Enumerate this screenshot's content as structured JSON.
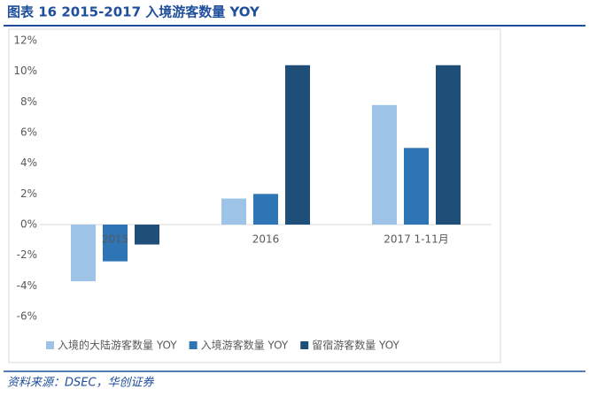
{
  "chart_data": {
    "type": "bar",
    "title": "图表 16    2015-2017 入境游客数量 YOY",
    "source": "资料来源：DSEC，华创证券",
    "categories": [
      "2015",
      "2016",
      "2017 1-11月"
    ],
    "series": [
      {
        "name": "入境的大陆游客数量 YOY",
        "color": "#9dc3e6",
        "values": [
          -3.7,
          1.7,
          7.8
        ]
      },
      {
        "name": "入境游客数量 YOY",
        "color": "#2e75b6",
        "values": [
          -2.4,
          2.0,
          5.0
        ]
      },
      {
        "name": "留宿游客数量 YOY",
        "color": "#1f4e79",
        "values": [
          -1.3,
          10.4,
          10.4
        ]
      }
    ],
    "ylim": [
      -6,
      12
    ],
    "yticks": [
      {
        "value": -6,
        "label": "-6%"
      },
      {
        "value": -4,
        "label": "-4%"
      },
      {
        "value": -2,
        "label": "-2%"
      },
      {
        "value": 0,
        "label": "0%"
      },
      {
        "value": 2,
        "label": "2%"
      },
      {
        "value": 4,
        "label": "4%"
      },
      {
        "value": 6,
        "label": "6%"
      },
      {
        "value": 8,
        "label": "8%"
      },
      {
        "value": 10,
        "label": "10%"
      },
      {
        "value": 12,
        "label": "12%"
      }
    ],
    "legend": "bottom"
  }
}
